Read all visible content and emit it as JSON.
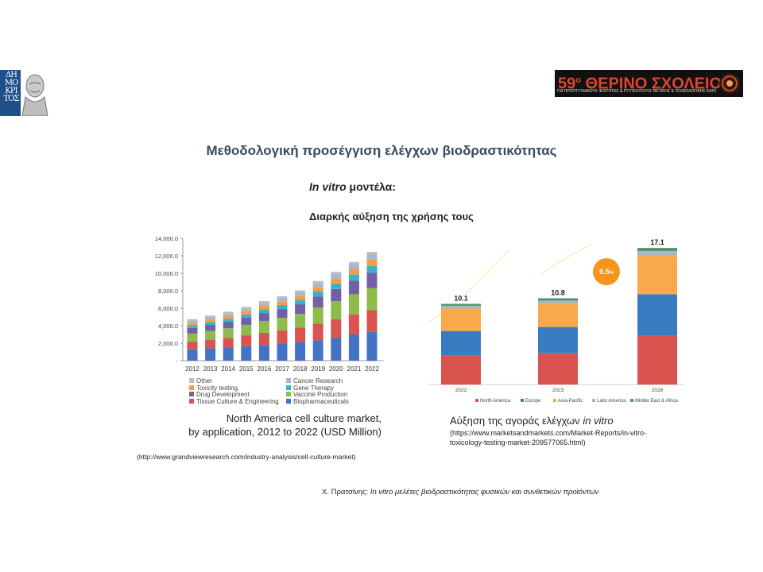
{
  "slide": {
    "title": "Μεθοδολογική προσέγγιση ελέγχων βιοδραστικότητας",
    "subtitle_italic": "In vitro",
    "subtitle_rest": " μοντέλα:",
    "subtitle2": "Διαρκής αύξηση της χρήσης τους",
    "caption_left_line1": "North America cell culture market,",
    "caption_left_line2": "by application, 2012 to 2022 (USD Million)",
    "source_left": "(http://www.grandviewresearch.com/industry-analysis/cell-culture-market)",
    "caption_right_prefix": "Αύξηση της αγοράς ελέγχων ",
    "caption_right_italic": "in vitro",
    "source_right": "(https://www.marketsandmarkets.com/Market-Reports/in-vitro-toxicology-testing-market-209577065.html)",
    "footer_name": "Χ. Πρατσίνης: ",
    "footer_italic": "In vitro μελέτες βιοδραστικότητας φυσικών και συνθετικών προϊόντων",
    "logo_left_text": "ΔΗ ΜΟ ΚΡΙ ΤΟΣ",
    "logo_right_title": "59",
    "logo_right_sup": "ο",
    "logo_right_title2": " ΘΕΡΙΝΟ ΣΧΟΛΕΙΟ",
    "logo_right_sub": "ΓΙΑ ΠΡΟΠΤΥΧΙΑΚΟΥΣ ΦΟΙΤΗΤΕΣ & ΠΤΥΧΙΟΥΧΟΥΣ ΘΕΤΙΚΗΣ & ΤΕΧΝΟΛΟΓΙΚΗΣ ΚΑΤΕΥΘΥΝΣΗΣ"
  },
  "chart_data": [
    {
      "type": "bar",
      "stacked": true,
      "categories": [
        "2012",
        "2013",
        "2014",
        "2015",
        "2016",
        "2017",
        "2018",
        "2019",
        "2020",
        "2021",
        "2022"
      ],
      "ylim": [
        0,
        14000
      ],
      "yticks": [
        "-",
        "2,000.0",
        "4,000.0",
        "6,000.0",
        "8,000.0",
        "10,000.0",
        "12,000.0",
        "14,000.0"
      ],
      "grid": false,
      "legend": "bottom",
      "series": [
        {
          "name": "Biopharmaceuticals",
          "color": "#4472c4",
          "values": [
            1300,
            1400,
            1500,
            1650,
            1800,
            1950,
            2150,
            2350,
            2650,
            3000,
            3300
          ]
        },
        {
          "name": "Tissue Culture  & Engineering",
          "color": "#d9534f",
          "values": [
            900,
            1000,
            1100,
            1250,
            1400,
            1500,
            1650,
            1900,
            2100,
            2300,
            2500
          ]
        },
        {
          "name": "Vaccine Production",
          "color": "#8dbb4c",
          "values": [
            900,
            1000,
            1100,
            1200,
            1350,
            1450,
            1550,
            1850,
            2050,
            2300,
            2500
          ]
        },
        {
          "name": "Drug Development",
          "color": "#7160a3",
          "values": [
            650,
            700,
            750,
            800,
            900,
            1000,
            1100,
            1250,
            1400,
            1550,
            1750
          ]
        },
        {
          "name": "Gene Therapy",
          "color": "#35b4c8",
          "values": [
            300,
            320,
            350,
            380,
            420,
            460,
            500,
            560,
            630,
            700,
            800
          ]
        },
        {
          "name": "Toxicity testing",
          "color": "#f59d45",
          "values": [
            300,
            320,
            340,
            370,
            400,
            430,
            470,
            530,
            600,
            650,
            750
          ]
        },
        {
          "name": "Cancer Research",
          "color": "#a4b8d8",
          "values": [
            250,
            270,
            290,
            320,
            350,
            380,
            410,
            460,
            500,
            550,
            600
          ]
        },
        {
          "name": "Other",
          "color": "#bdbdbd",
          "values": [
            150,
            160,
            170,
            180,
            190,
            200,
            210,
            220,
            230,
            240,
            250
          ]
        }
      ]
    },
    {
      "type": "bar",
      "stacked": true,
      "categories": [
        "2022",
        "2023",
        "2028"
      ],
      "totals": [
        "10.1",
        "10.8",
        "17.1"
      ],
      "growth_badge": "9.5",
      "growth_badge_suffix": "%",
      "ylim": [
        0,
        18
      ],
      "legend": "bottom",
      "series": [
        {
          "name": "North America",
          "color": "#d9534f",
          "values": [
            3.6,
            3.9,
            6.1
          ]
        },
        {
          "name": "Europe",
          "color": "#3a7cc2",
          "values": [
            3.1,
            3.3,
            5.2
          ]
        },
        {
          "name": "Asia-Pacific",
          "color": "#f7a94b",
          "values": [
            2.8,
            2.9,
            4.8
          ]
        },
        {
          "name": "Latin America",
          "color": "#a9b6c2",
          "values": [
            0.35,
            0.4,
            0.6
          ]
        },
        {
          "name": "Middle East & Africa",
          "color": "#4f9a6a",
          "values": [
            0.25,
            0.3,
            0.4
          ]
        }
      ]
    }
  ]
}
